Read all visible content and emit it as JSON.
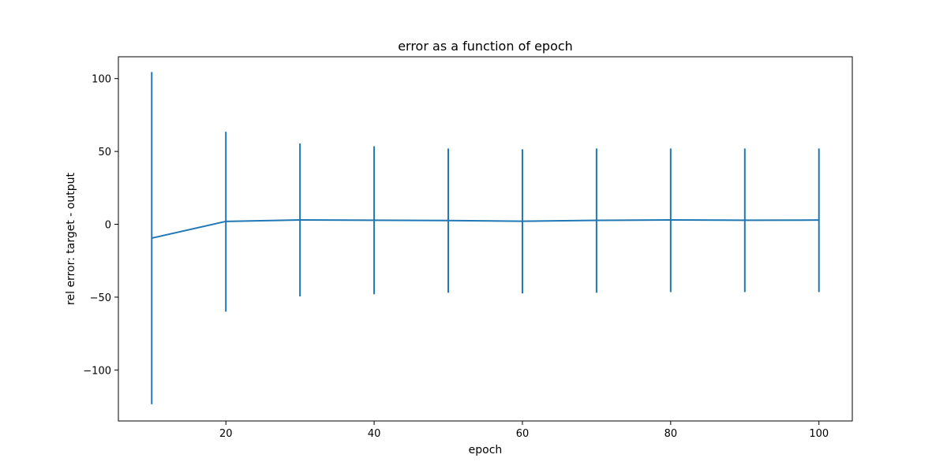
{
  "chart_data": {
    "type": "line",
    "title": "error as a function of epoch",
    "xlabel": "epoch",
    "ylabel": "rel error: target - output",
    "xlim": [
      5.5,
      104.5
    ],
    "ylim": [
      -135,
      115
    ],
    "xticks": [
      20,
      40,
      60,
      80,
      100
    ],
    "yticks": [
      -100,
      -50,
      0,
      50,
      100
    ],
    "xtick_labels": [
      "20",
      "40",
      "60",
      "80",
      "100"
    ],
    "ytick_labels": [
      "−100",
      "−50",
      "0",
      "50",
      "100"
    ],
    "grid": false,
    "series": [
      {
        "color": "#1f77b4",
        "x": [
          10,
          20,
          30,
          40,
          50,
          60,
          70,
          80,
          90,
          100
        ],
        "y": [
          -9.5,
          2.0,
          3.0,
          2.8,
          2.6,
          2.1,
          2.7,
          3.0,
          2.8,
          2.9
        ],
        "yerr_low": [
          -123.5,
          -60.0,
          -49.5,
          -48.0,
          -47.0,
          -47.5,
          -47.0,
          -46.5,
          -46.5,
          -46.5
        ],
        "yerr_high": [
          104.5,
          63.5,
          55.5,
          53.5,
          52.0,
          51.5,
          52.0,
          52.0,
          52.0,
          52.0
        ]
      }
    ]
  }
}
